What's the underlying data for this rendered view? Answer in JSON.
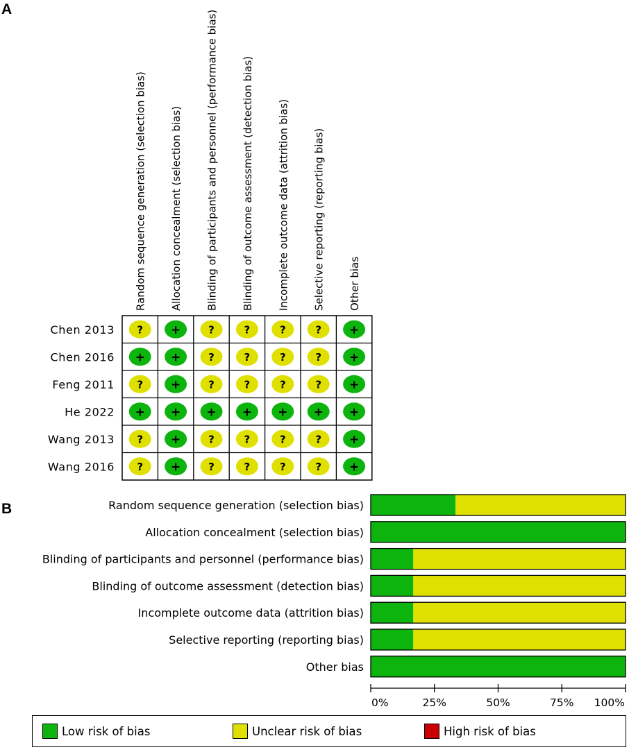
{
  "panels": {
    "a_label": "A",
    "b_label": "B"
  },
  "colors": {
    "low": "#0db40d",
    "unclear": "#e0e000",
    "high": "#c80000"
  },
  "chart_data": [
    {
      "type": "table",
      "domains": [
        "Random sequence generation (selection bias)",
        "Allocation concealment (selection bias)",
        "Blinding of participants and personnel (performance bias)",
        "Blinding of outcome assessment (detection bias)",
        "Incomplete outcome data (attrition bias)",
        "Selective reporting (reporting bias)",
        "Other bias"
      ],
      "studies": [
        "Chen 2013",
        "Chen 2016",
        "Feng 2011",
        "He 2022",
        "Wang 2013",
        "Wang 2016"
      ],
      "symbols": {
        "low": "+",
        "unclear": "?"
      },
      "judgements": [
        [
          "unclear",
          "low",
          "unclear",
          "unclear",
          "unclear",
          "unclear",
          "low"
        ],
        [
          "low",
          "low",
          "unclear",
          "unclear",
          "unclear",
          "unclear",
          "low"
        ],
        [
          "unclear",
          "low",
          "unclear",
          "unclear",
          "unclear",
          "unclear",
          "low"
        ],
        [
          "low",
          "low",
          "low",
          "low",
          "low",
          "low",
          "low"
        ],
        [
          "unclear",
          "low",
          "unclear",
          "unclear",
          "unclear",
          "unclear",
          "low"
        ],
        [
          "unclear",
          "low",
          "unclear",
          "unclear",
          "unclear",
          "unclear",
          "low"
        ]
      ]
    },
    {
      "type": "bar",
      "orientation": "horizontal-stacked",
      "categories": [
        "Random sequence generation (selection bias)",
        "Allocation concealment (selection bias)",
        "Blinding of participants and personnel (performance bias)",
        "Blinding of outcome assessment (detection bias)",
        "Incomplete outcome data (attrition bias)",
        "Selective reporting (reporting bias)",
        "Other bias"
      ],
      "series": [
        {
          "name": "Low risk of bias",
          "key": "low",
          "values": [
            33.3,
            100,
            16.7,
            16.7,
            16.7,
            16.7,
            100
          ]
        },
        {
          "name": "Unclear risk of bias",
          "key": "unclear",
          "values": [
            66.7,
            0,
            83.3,
            83.3,
            83.3,
            83.3,
            0
          ]
        },
        {
          "name": "High risk of bias",
          "key": "high",
          "values": [
            0,
            0,
            0,
            0,
            0,
            0,
            0
          ]
        }
      ],
      "xlim": [
        0,
        100
      ],
      "ticks": [
        "0%",
        "25%",
        "50%",
        "75%",
        "100%"
      ],
      "tick_values": [
        0,
        25,
        50,
        75,
        100
      ]
    }
  ],
  "legend": {
    "items": [
      {
        "label": "Low risk of bias",
        "key": "low"
      },
      {
        "label": "Unclear risk of bias",
        "key": "unclear"
      },
      {
        "label": "High risk of bias",
        "key": "high"
      }
    ]
  }
}
